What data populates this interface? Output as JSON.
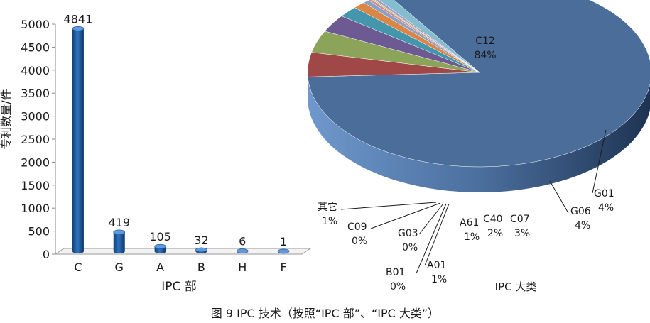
{
  "caption": "图 9  IPC 技术（按照“IPC 部”、“IPC 大类”）",
  "chart_data": [
    {
      "type": "bar",
      "categories": [
        "C",
        "G",
        "A",
        "B",
        "H",
        "F"
      ],
      "values": [
        4841,
        419,
        105,
        32,
        6,
        1
      ],
      "data_labels": [
        "4841",
        "419",
        "105",
        "32",
        "6",
        "1"
      ],
      "ylabel": "专利数量/件",
      "xlabel": "IPC 部",
      "ylim": [
        0,
        5000
      ],
      "yticks": [
        0,
        500,
        1000,
        1500,
        2000,
        2500,
        3000,
        3500,
        4000,
        4500,
        5000
      ],
      "bar_color": "#1f5fa8"
    },
    {
      "type": "pie",
      "title": "IPC 大类",
      "slices": [
        {
          "label": "C12",
          "pct_label": "84%",
          "value": 84.0,
          "color": "#4a6d9a"
        },
        {
          "label": "G01",
          "pct_label": "4%",
          "value": 4.2,
          "color": "#a04848"
        },
        {
          "label": "G06",
          "pct_label": "4%",
          "value": 3.8,
          "color": "#8ba45a"
        },
        {
          "label": "C07",
          "pct_label": "3%",
          "value": 3.0,
          "color": "#6e5a92"
        },
        {
          "label": "C40",
          "pct_label": "2%",
          "value": 1.9,
          "color": "#4396ac"
        },
        {
          "label": "A61",
          "pct_label": "1%",
          "value": 1.2,
          "color": "#d98646"
        },
        {
          "label": "A01",
          "pct_label": "1%",
          "value": 0.6,
          "color": "#8aa0c6"
        },
        {
          "label": "B01",
          "pct_label": "0%",
          "value": 0.3,
          "color": "#d08a88"
        },
        {
          "label": "G03",
          "pct_label": "0%",
          "value": 0.2,
          "color": "#b7c98e"
        },
        {
          "label": "C09",
          "pct_label": "0%",
          "value": 0.3,
          "color": "#a897c0"
        },
        {
          "label": "其它",
          "pct_label": "1%",
          "value": 1.2,
          "color": "#84bdd0"
        }
      ]
    }
  ]
}
